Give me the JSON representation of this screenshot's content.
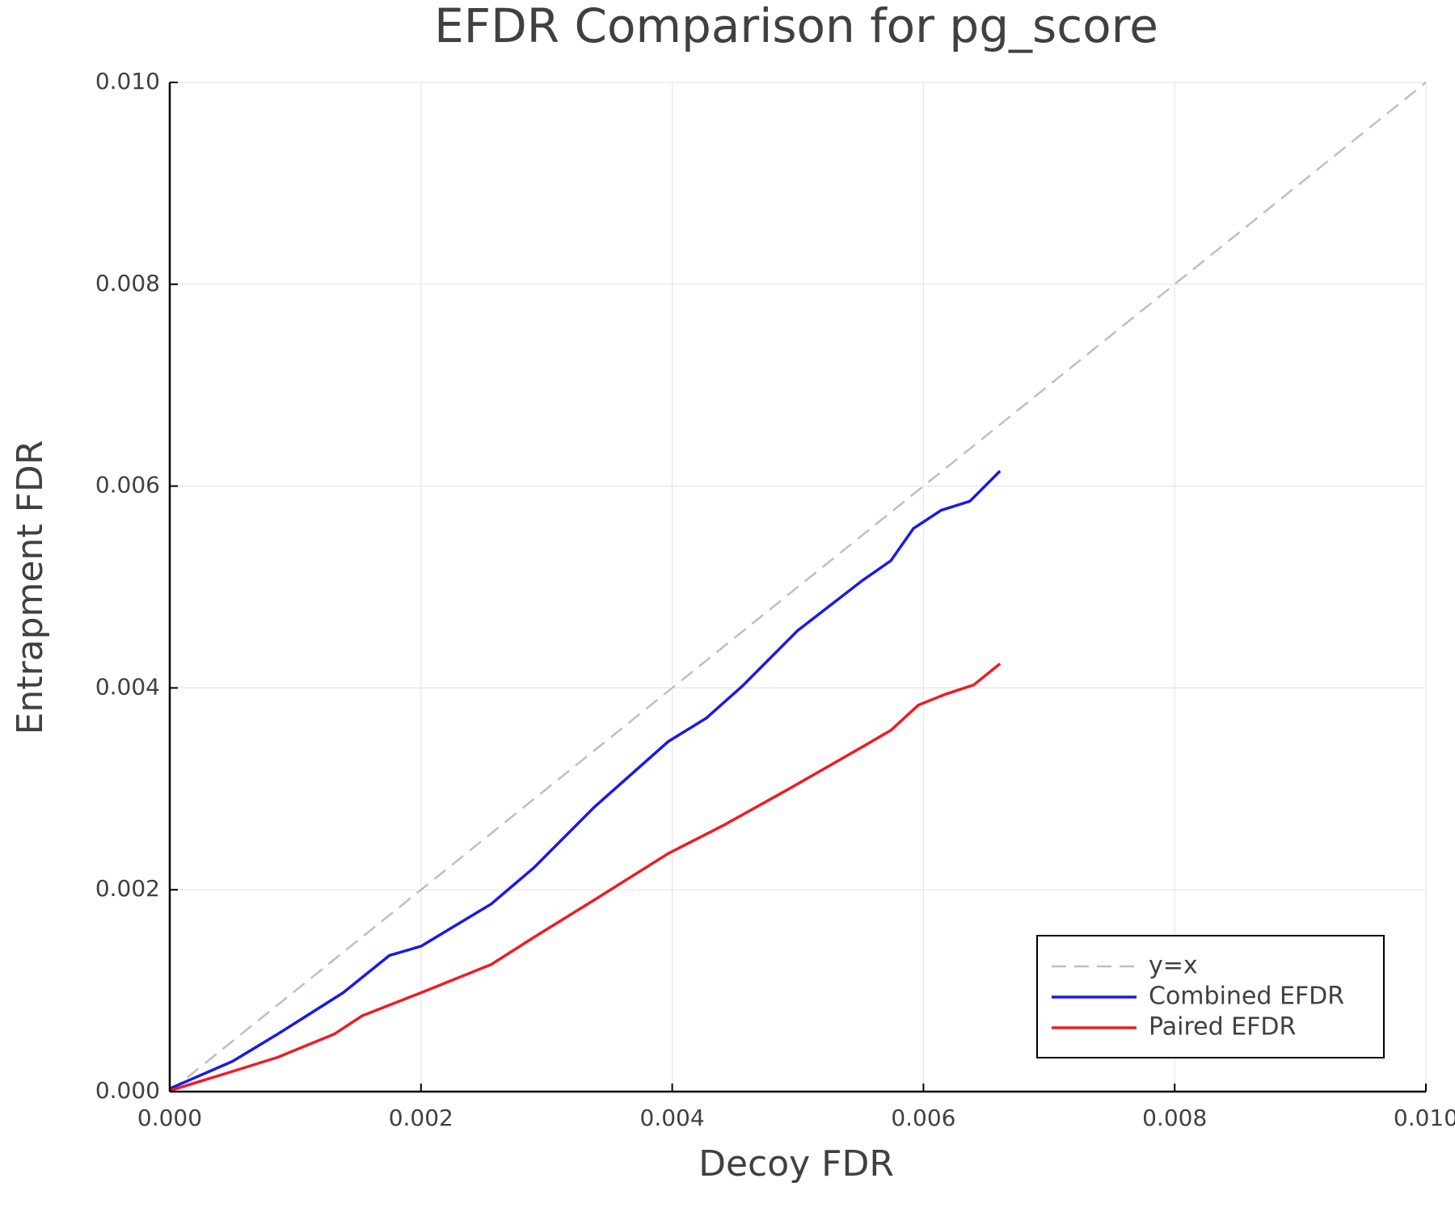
{
  "chart_data": {
    "type": "line",
    "title": "EFDR Comparison for pg_score",
    "x_label": "Decoy FDR",
    "y_label": "Entrapment FDR",
    "xlim": [
      0,
      0.01
    ],
    "ylim": [
      0,
      0.01
    ],
    "xticks": [
      {
        "value": 0,
        "label": "0.000"
      },
      {
        "value": 0.002,
        "label": "0.002"
      },
      {
        "value": 0.004,
        "label": "0.004"
      },
      {
        "value": 0.006,
        "label": "0.006"
      },
      {
        "value": 0.008,
        "label": "0.008"
      },
      {
        "value": 0.01,
        "label": "0.010"
      }
    ],
    "yticks": [
      {
        "value": 0,
        "label": "0.000"
      },
      {
        "value": 0.002,
        "label": "0.002"
      },
      {
        "value": 0.004,
        "label": "0.004"
      },
      {
        "value": 0.006,
        "label": "0.006"
      },
      {
        "value": 0.008,
        "label": "0.008"
      },
      {
        "value": 0.01,
        "label": "0.010"
      }
    ],
    "grid": true,
    "legend": "bottom-right",
    "series": [
      {
        "name": "y=x",
        "color": "#bfbfbf",
        "dashed": true,
        "x": [
          0,
          0.01
        ],
        "values": [
          0,
          0.01
        ]
      },
      {
        "name": "Combined EFDR",
        "color": "#1a1ae6",
        "x": [
          0,
          0.0005,
          0.00086,
          0.00138,
          0.00175,
          0.002,
          0.00256,
          0.0029,
          0.00338,
          0.00397,
          0.00427,
          0.00456,
          0.005,
          0.00552,
          0.00574,
          0.00592,
          0.00614,
          0.00637,
          0.00661
        ],
        "values": [
          3e-05,
          0.0003,
          0.00057,
          0.00098,
          0.00135,
          0.00144,
          0.00186,
          0.00222,
          0.00282,
          0.00347,
          0.0037,
          0.00402,
          0.00457,
          0.00507,
          0.00526,
          0.00558,
          0.00576,
          0.00585,
          0.00615
        ]
      },
      {
        "name": "Paired EFDR",
        "color": "#ee1c25",
        "x": [
          0,
          0.0005,
          0.00086,
          0.00131,
          0.00153,
          0.002,
          0.00256,
          0.0029,
          0.00338,
          0.00397,
          0.00441,
          0.00493,
          0.00552,
          0.00574,
          0.00596,
          0.00618,
          0.0064,
          0.00661
        ],
        "values": [
          1e-05,
          0.0002,
          0.00034,
          0.00057,
          0.00075,
          0.00098,
          0.00126,
          0.00153,
          0.0019,
          0.00236,
          0.00264,
          0.003,
          0.00342,
          0.00358,
          0.00383,
          0.00394,
          0.00403,
          0.00424
        ]
      }
    ]
  }
}
